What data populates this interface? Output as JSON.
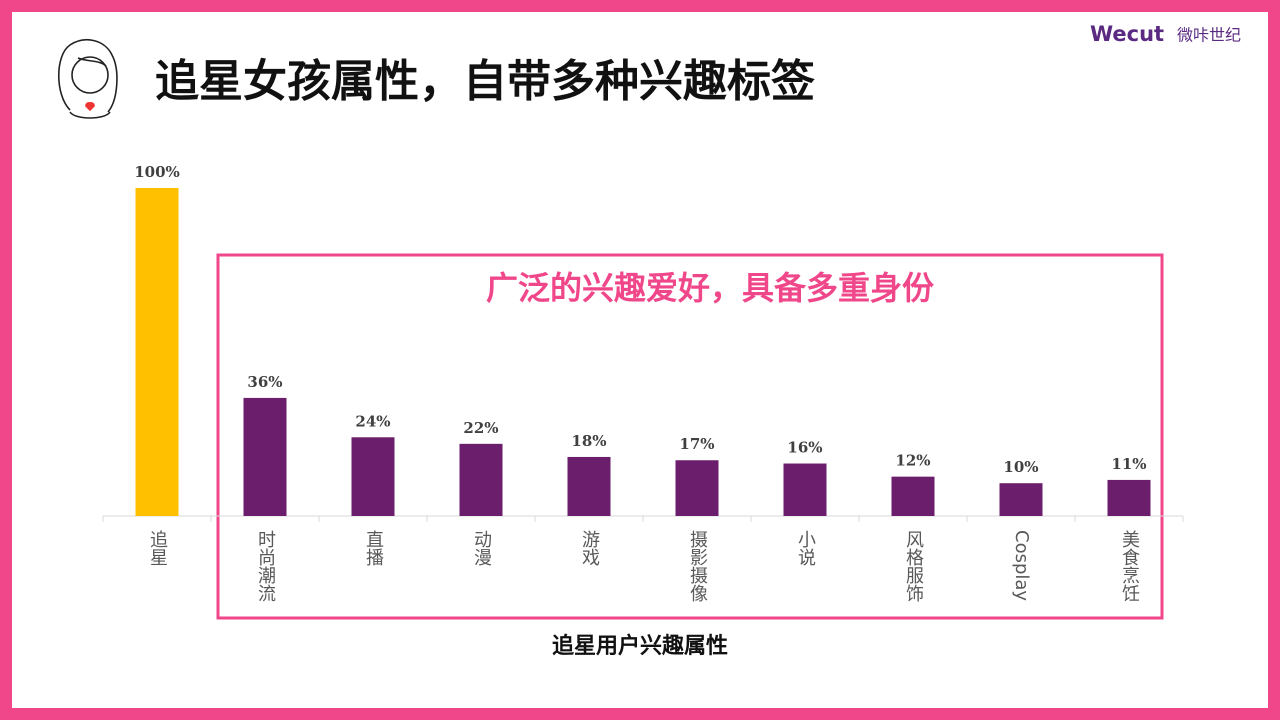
{
  "chart_data": {
    "type": "bar",
    "title": "追星女孩属性，自带多种兴趣标签",
    "brand": "Wecut",
    "brand_cn": "微咔世纪",
    "annotation": "广泛的兴趣爱好，具备多重身份",
    "x_label": "追星用户兴趣属性",
    "categories": [
      "追星",
      "时尚潮流",
      "直播",
      "动漫",
      "游戏",
      "摄影摄像",
      "小说",
      "风格服饰",
      "Cosplay",
      "美食烹饪"
    ],
    "values": [
      100,
      36,
      24,
      22,
      18,
      17,
      16,
      12,
      10,
      11
    ],
    "value_labels": [
      "100%",
      "36%",
      "24%",
      "22%",
      "18%",
      "17%",
      "16%",
      "12%",
      "10%",
      "11%"
    ],
    "colors": [
      "#FFC000",
      "#6B1E6B",
      "#6B1E6B",
      "#6B1E6B",
      "#6B1E6B",
      "#6B1E6B",
      "#6B1E6B",
      "#6B1E6B",
      "#6B1E6B",
      "#6B1E6B"
    ]
  }
}
